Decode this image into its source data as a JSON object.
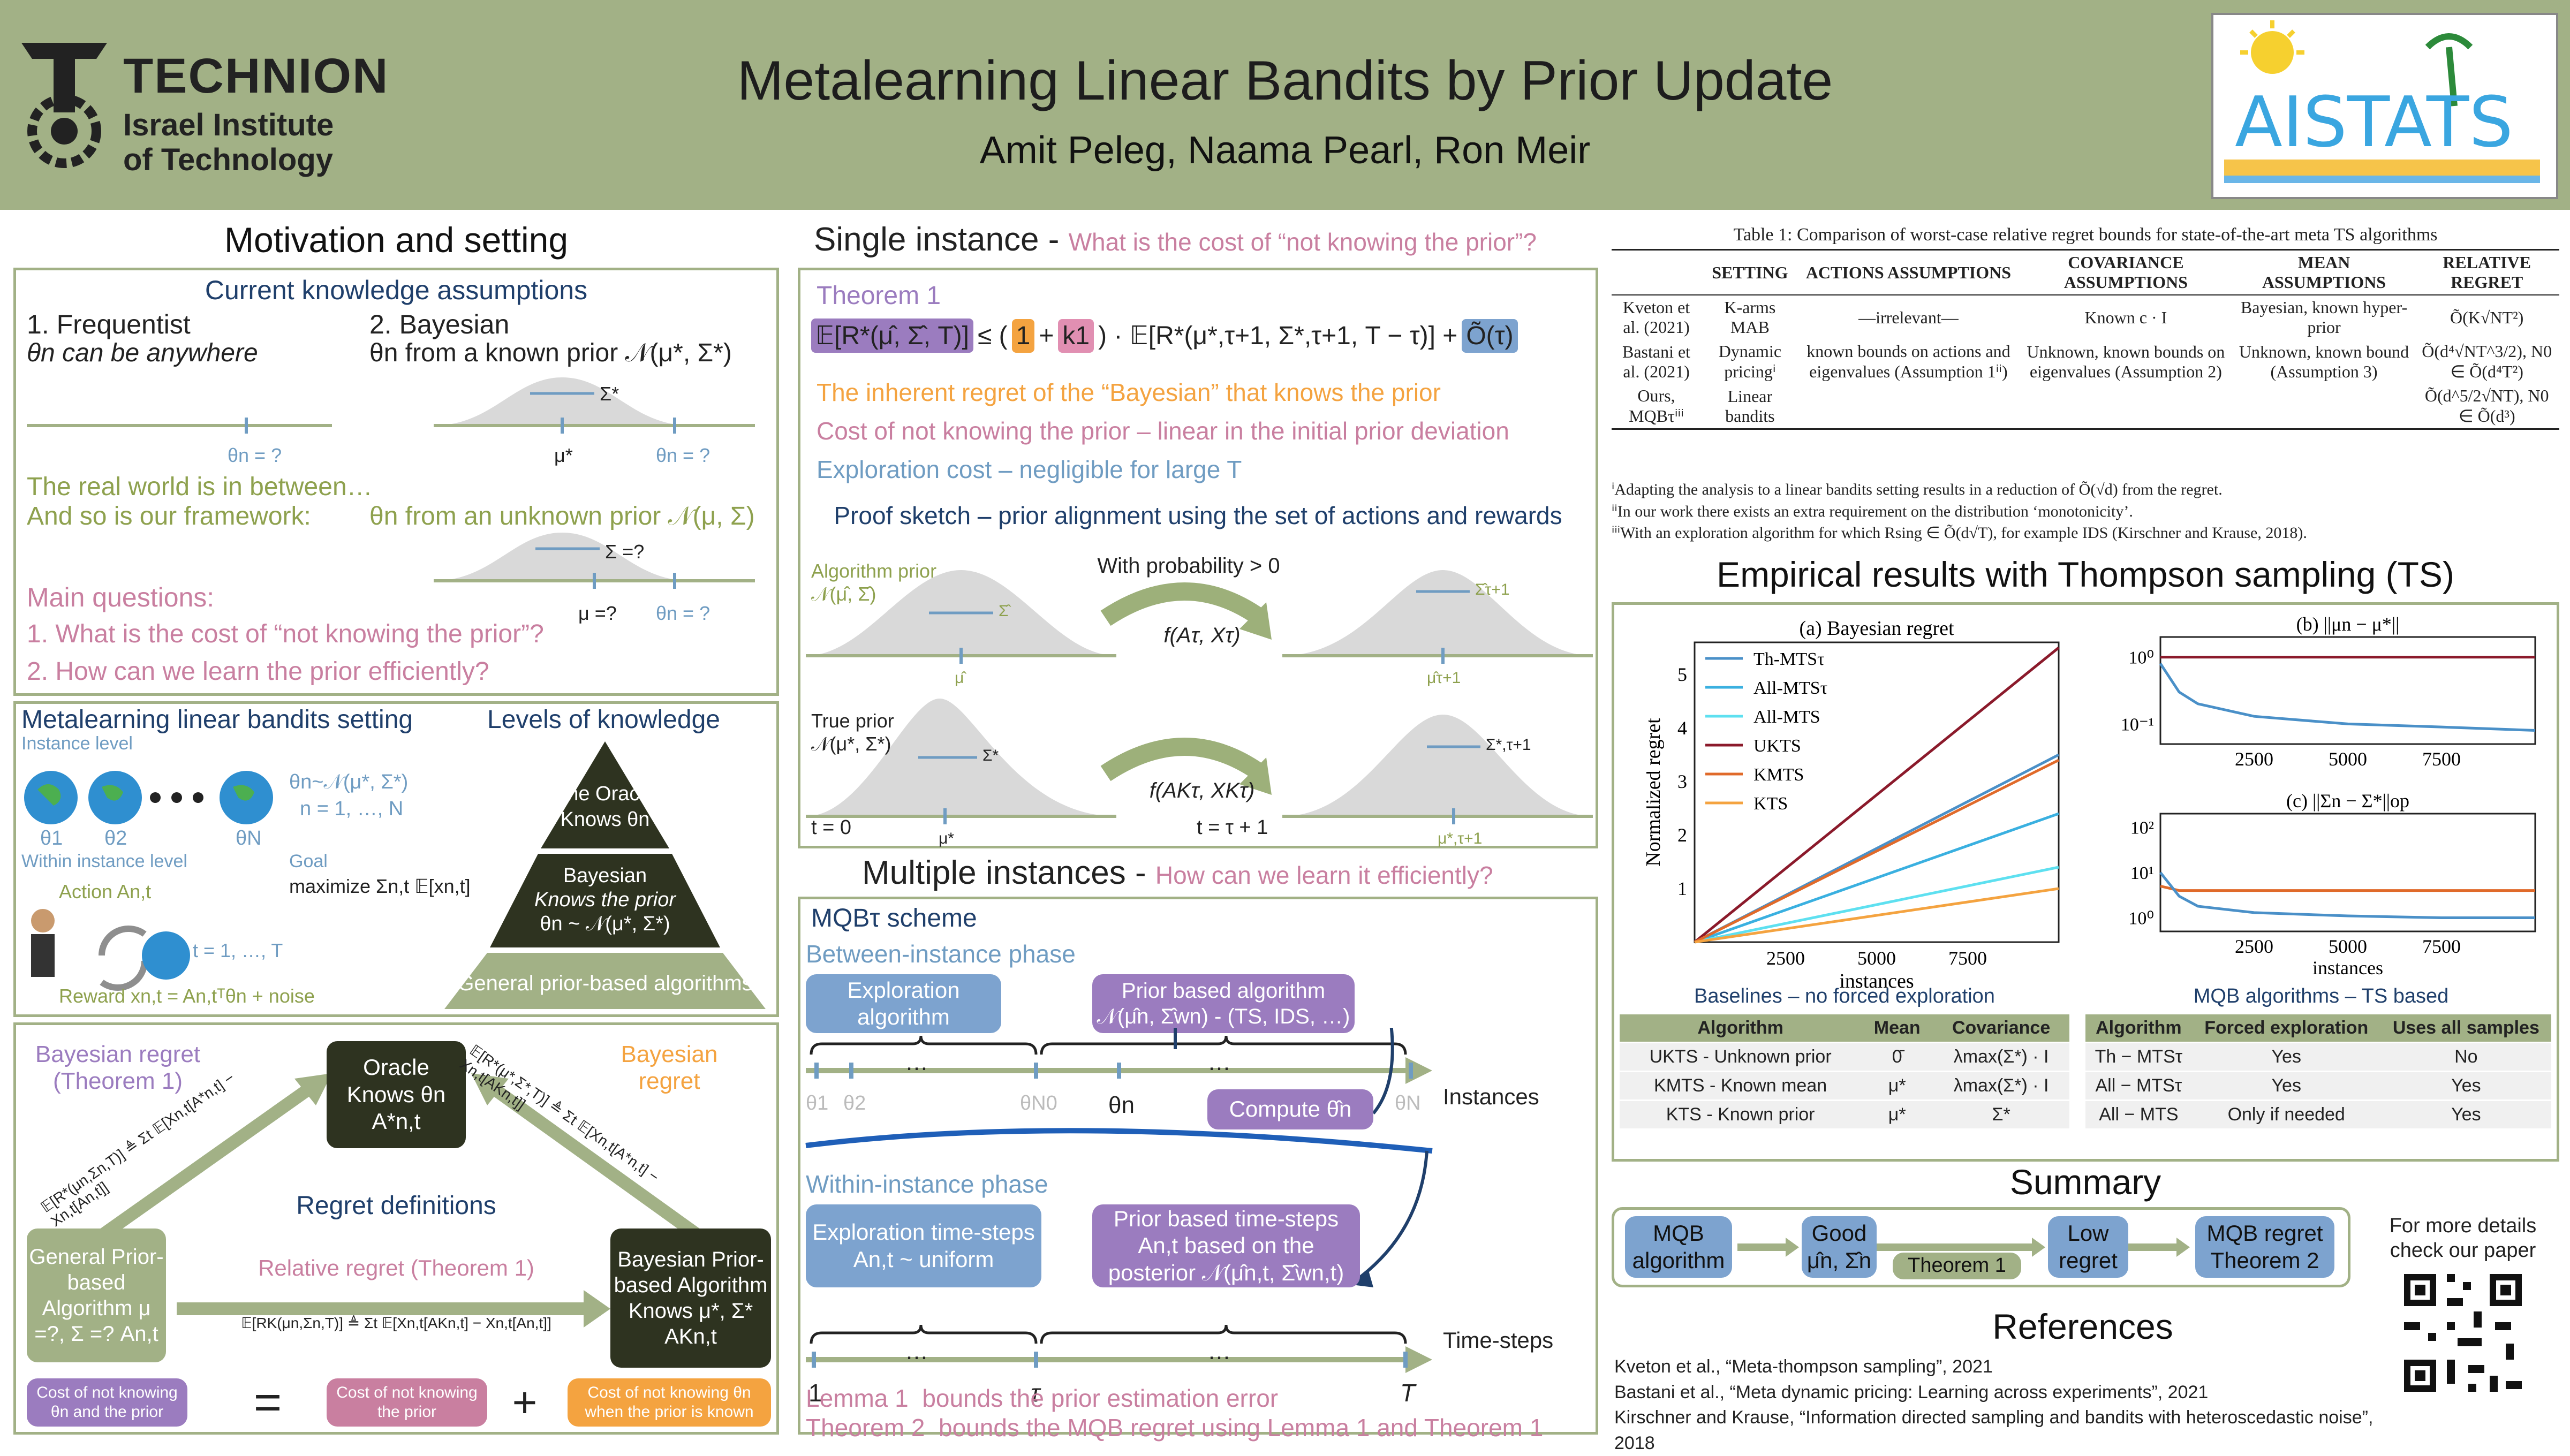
{
  "header": {
    "institution_name": "TECHNION",
    "institution_sub1": "Israel Institute",
    "institution_sub2": "of Technology",
    "title": "Metalearning Linear Bandits by Prior Update",
    "authors": "Amit Peleg, Naama Pearl, Ron Meir",
    "conf_logo": "AISTATS"
  },
  "motivation": {
    "title": "Motivation and setting",
    "subtitle": "Current knowledge assumptions",
    "freq_head": "1. Frequentist",
    "freq_desc": "θn can be anywhere",
    "bayes_head": "2. Bayesian",
    "bayes_desc": "θn from a known prior 𝒩(μ*, Σ*)",
    "real_world1": "The real world is in between…",
    "real_world2": "And so is our framework:",
    "framework_desc": "θn from an unknown prior 𝒩(μ, Σ)",
    "q_title": "Main questions:",
    "q1": "1.   What is the cost of “not knowing the prior”?",
    "q2": "2.   How can we learn the prior efficiently?",
    "tick_theta": "θn = ?",
    "tick_mu": "μ*",
    "tick_sigma": "Σ*",
    "tick_mu_q": "μ =?",
    "tick_sigma_q": "Σ =?"
  },
  "setting": {
    "title": "Metalearning linear bandits setting",
    "instance_level": "Instance level",
    "theta_dist": "θn~𝒩(μ*, Σ*)",
    "n_range": "n = 1, …, N",
    "theta1": "θ1",
    "theta2": "θ2",
    "thetaN": "θN",
    "within": "Within instance level",
    "goal": "Goal",
    "maximize": "maximize Σn,t 𝔼[xn,t]",
    "action": "Action An,t",
    "t_range": "t = 1, …, T",
    "reward": "Reward xn,t = An,tᵀθn + noise",
    "levels_title": "Levels of knowledge",
    "pyr_top": "The Oracle Knows θn",
    "pyr_mid1": "Bayesian",
    "pyr_mid2": "Knows the prior",
    "pyr_mid3": "θn ~ 𝒩(μ*, Σ*)",
    "pyr_bottom": "General prior-based algorithms"
  },
  "regret": {
    "bayes_regret_label": "Bayesian regret (Theorem 1)",
    "bayes_regret2": "Bayesian regret",
    "oracle": "Oracle Knows θn A*n,t",
    "regret_defs": "Regret definitions",
    "relative": "Relative regret (Theorem 1)",
    "general_box": "General Prior-based Algorithm μ =?, Σ =? An,t",
    "bayes_box": "Bayesian Prior-based Algorithm Knows μ*, Σ* AKn,t",
    "eq_left": "𝔼[R*(μn,Σn,T)] ≜ Σt 𝔼[Xn,t[A*n,t] − Xn,t[An,t]]",
    "eq_right": "𝔼[R*(μ*,Σ*,T)] ≜ Σt 𝔼[Xn,t[A*n,t] − Xn,t[AKn,t]]",
    "eq_mid": "𝔼[RK(μn,Σn,T)] ≜ Σt 𝔼[Xn,t[AKn,t] − Xn,t[An,t]]",
    "cost1": "Cost of not knowing θn and the prior",
    "cost2": "Cost of not knowing the prior",
    "cost3": "Cost of not knowing θn when the prior is known"
  },
  "single": {
    "title": "Single instance - ",
    "title_q": "What is the cost of “not knowing the prior”?",
    "theorem": "Theorem 1",
    "eq_a": "𝔼[R*(μ̂, Σ̂, T)]",
    "eq_b": "≤ (",
    "eq_one": "1",
    "eq_plus": "+",
    "eq_k": "k1",
    "eq_c": ") · 𝔼[R*(μ*,τ+1, Σ*,τ+1, T − τ)] +",
    "eq_d": "Õ(τ)",
    "l1": "The inherent regret of the “Bayesian” that knows the prior",
    "l2": "Cost of not knowing the prior – linear in the initial prior deviation",
    "l3": "Exploration cost – negligible for large T",
    "proof": "Proof sketch – prior alignment using the set of actions and rewards",
    "alg_prior": "Algorithm prior",
    "alg_prior2": "𝒩(μ̂, Σ̂)",
    "true_prior": "True prior",
    "true_prior2": "𝒩(μ*, Σ*)",
    "prob": "With probability > 0",
    "f1": "f(Aτ, Xτ)",
    "f2": "f(AKτ, XKτ)",
    "t0": "t = 0",
    "t1": "t = τ + 1",
    "lab_sigma_hat": "Σ̂",
    "lab_mu_hat": "μ̂",
    "lab_sigma_hat_t": "Σ̂τ+1",
    "lab_mu_hat_t": "μ̂τ+1",
    "lab_sigma_star": "Σ*",
    "lab_mu_star": "μ*",
    "lab_sigma_star_t": "Σ*,τ+1",
    "lab_mu_star_t": "μ*,τ+1"
  },
  "multiple": {
    "title": "Multiple instances - ",
    "title_q": "How can we learn it efficiently?",
    "scheme": "MQBτ scheme",
    "between": "Between-instance phase",
    "exploration_alg": "Exploration algorithm",
    "prior_alg": "Prior based algorithm 𝒩(μ̂n, Σ̂wn) - (TS, IDS, …)",
    "compute": "Compute θ̂n",
    "instances": "Instances",
    "theta1": "θ1",
    "theta2": "θ2",
    "thetaN0": "θN0",
    "thetan": "θn",
    "thetaN": "θN",
    "within": "Within-instance phase",
    "explore_steps": "Exploration time-steps An,t ~ uniform",
    "prior_steps": "Prior based time-steps An,t based on the posterior 𝒩(μ̂n,t, Σ̂wn,t)",
    "timesteps": "Time-steps",
    "t1": "1",
    "ttau": "τ",
    "tT": "T",
    "dots": "…",
    "lemma": "Lemma 1",
    "lemma_desc": "bounds the prior estimation error",
    "theorem2": "Theorem 2",
    "theorem2_desc": "bounds the MQB regret using Lemma 1 and Theorem 1"
  },
  "table1": {
    "caption": "Table 1: Comparison of worst-case relative regret bounds for state-of-the-art meta TS algorithms",
    "headers": [
      "",
      "SETTING",
      "ACTIONS ASSUMPTIONS",
      "COVARIANCE ASSUMPTIONS",
      "MEAN ASSUMPTIONS",
      "RELATIVE REGRET"
    ],
    "rows": [
      [
        "Kveton et al. (2021)",
        "K-arms MAB",
        "—irrelevant—",
        "Known c · I",
        "Bayesian, known hyper-prior",
        "Õ(K√NT²)"
      ],
      [
        "Bastani et al. (2021)",
        "Dynamic pricingⁱ",
        "known bounds on actions and eigenvalues (Assumption 1ⁱⁱ)",
        "Unknown, known bounds on eigenvalues (Assumption 2)",
        "Unknown, known bound (Assumption 3)",
        "Õ(d⁴√NT^3/2), N0 ∈ Õ(d⁴T²)"
      ],
      [
        "Ours, MQBτⁱⁱⁱ",
        "Linear bandits",
        "",
        "",
        "",
        "Õ(d^5/2√NT), N0 ∈ Õ(d³)"
      ]
    ],
    "fn1": "ⁱAdapting the analysis to a linear bandits setting results in a reduction of Õ(√d) from the regret.",
    "fn2": "ⁱⁱIn our work there exists an extra requirement on the distribution ‘monotonicity’.",
    "fn3": "ⁱⁱⁱWith an exploration algorithm for which Rsing ∈ Õ(d√T), for example IDS (Kirschner and Krause, 2018)."
  },
  "empirical": {
    "title": "Empirical results with Thompson sampling (TS)",
    "xlabel": "instances",
    "ylabel": "Normalized regret",
    "baselines_title": "Baselines – no forced exploration",
    "mqb_title": "MQB algorithms – TS based",
    "baselines_headers": [
      "Algorithm",
      "Mean",
      "Covariance"
    ],
    "baselines_rows": [
      [
        "UKTS - Unknown prior",
        "0̄",
        "λmax(Σ*) · I"
      ],
      [
        "KMTS - Known mean",
        "μ*",
        "λmax(Σ*) · I"
      ],
      [
        "KTS - Known prior",
        "μ*",
        "Σ*"
      ]
    ],
    "mqb_headers": [
      "Algorithm",
      "Forced exploration",
      "Uses all samples"
    ],
    "mqb_rows": [
      [
        "Th − MTSτ",
        "Yes",
        "No"
      ],
      [
        "All − MTSτ",
        "Yes",
        "Yes"
      ],
      [
        "All − MTS",
        "Only if needed",
        "Yes"
      ]
    ]
  },
  "chart_data": [
    {
      "type": "line",
      "title": "(a) Bayesian regret",
      "xlabel": "instances",
      "ylabel": "Normalized regret",
      "xlim": [
        0,
        10000
      ],
      "ylim": [
        0,
        5.6
      ],
      "xticks": [
        2500,
        5000,
        7500
      ],
      "yticks": [
        1,
        2,
        3,
        4,
        5
      ],
      "legend_position": "top-left",
      "x": [
        0,
        10000
      ],
      "series": [
        {
          "name": "Th-MTSτ",
          "color": "#4a90c8",
          "values": [
            0,
            3.5
          ]
        },
        {
          "name": "All-MTSτ",
          "color": "#3ab0e0",
          "values": [
            0,
            2.4
          ]
        },
        {
          "name": "All-MTS",
          "color": "#5ee0f0",
          "values": [
            0,
            1.4
          ]
        },
        {
          "name": "UKTS",
          "color": "#8b1a2b",
          "values": [
            0,
            5.5
          ]
        },
        {
          "name": "KMTS",
          "color": "#e06a2a",
          "values": [
            0,
            3.4
          ]
        },
        {
          "name": "KTS",
          "color": "#f4a340",
          "values": [
            0,
            1.0
          ]
        }
      ]
    },
    {
      "type": "line",
      "title": "(b) ||μn − μ*||",
      "xlim": [
        0,
        10000
      ],
      "scale": "log",
      "yticks_label": [
        "10⁰",
        "10⁻¹"
      ],
      "xticks": [
        2500,
        5000,
        7500
      ],
      "x": [
        0,
        500,
        1000,
        2500,
        5000,
        7500,
        10000
      ],
      "series": [
        {
          "name": "UKTS",
          "color": "#8b1a2b",
          "values": [
            1,
            1,
            1,
            1,
            1,
            1,
            1
          ]
        },
        {
          "name": "Th-MTSτ",
          "color": "#4a90c8",
          "values": [
            0.8,
            0.3,
            0.2,
            0.13,
            0.1,
            0.09,
            0.08
          ]
        }
      ]
    },
    {
      "type": "line",
      "title": "(c) ||Σn − Σ*||op",
      "xlim": [
        0,
        10000
      ],
      "scale": "log",
      "yticks_label": [
        "10²",
        "10¹",
        "10⁰"
      ],
      "xlabel": "instances",
      "xticks": [
        2500,
        5000,
        7500
      ],
      "x": [
        0,
        500,
        1000,
        2500,
        5000,
        7500,
        10000
      ],
      "series": [
        {
          "name": "KMTS",
          "color": "#e06a2a",
          "values": [
            5,
            4,
            4,
            4,
            4,
            4,
            4
          ]
        },
        {
          "name": "Th-MTSτ",
          "color": "#4a90c8",
          "values": [
            10,
            3,
            1.8,
            1.3,
            1.1,
            1.0,
            1.0
          ]
        }
      ]
    }
  ],
  "summary": {
    "title": "Summary",
    "b1": "MQB algorithm",
    "b2": "Good μ̂n, Σ̂n",
    "b3": "Low regret",
    "b4": "MQB regret Theorem 2",
    "theorem1": "Theorem 1",
    "details": "For more details check our paper"
  },
  "references": {
    "title": "References",
    "r1": "Kveton et al., “Meta-thompson sampling”, 2021",
    "r2": "Bastani et al., “Meta dynamic pricing: Learning across experiments”, 2021",
    "r3": "Kirschner and Krause, “Information directed sampling and bandits with heteroscedastic noise”, 2018"
  }
}
